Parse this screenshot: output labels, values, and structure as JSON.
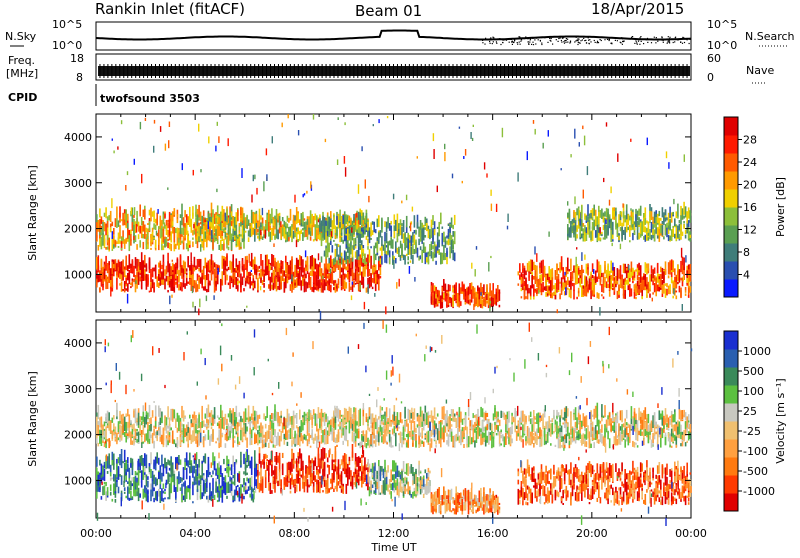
{
  "header": {
    "station": "Rankin Inlet (fitACF)",
    "beam": "Beam 01",
    "date": "18/Apr/2015"
  },
  "panels": {
    "nsky": {
      "left_label": "N.Sky",
      "right_label": "N.Search",
      "left_ticks": [
        "10^5",
        "10^0"
      ],
      "right_ticks": [
        "10^5",
        "10^0"
      ]
    },
    "freq": {
      "left_label_1": "Freq.",
      "left_label_2": "[MHz]",
      "right_label": "Nave",
      "left_ticks": [
        "18",
        "8"
      ],
      "right_ticks": [
        "60",
        "0"
      ]
    },
    "cpid": {
      "label": "CPID",
      "program": "twofsound 3503"
    }
  },
  "chart_data": [
    {
      "type": "heatmap",
      "name": "power",
      "xlabel": "",
      "ylabel": "Slant Range [km]",
      "xlim_hours": [
        0,
        24
      ],
      "ylim": [
        180,
        4500
      ],
      "y_ticks": [
        1000,
        2000,
        3000,
        4000
      ],
      "colorbar": {
        "label": "Power [dB]",
        "ticks": [
          "28",
          "24",
          "20",
          "16",
          "12",
          "8",
          "4"
        ],
        "colors": [
          "#0a1aff",
          "#2a4fb0",
          "#3f7d7a",
          "#5a9f52",
          "#8cbf3a",
          "#f0d000",
          "#ff9a00",
          "#ff5a00",
          "#ff1a00",
          "#e00000"
        ]
      },
      "regions": [
        {
          "t0": 0.0,
          "t1": 11.5,
          "r0": 600,
          "r1": 1200,
          "level": 0.85
        },
        {
          "t0": 0.0,
          "t1": 6.0,
          "r0": 1500,
          "r1": 2300,
          "level": 0.6
        },
        {
          "t0": 4.0,
          "t1": 11.0,
          "r0": 1700,
          "r1": 2200,
          "level": 0.5
        },
        {
          "t0": 9.0,
          "t1": 14.5,
          "r0": 1200,
          "r1": 2100,
          "level": 0.35
        },
        {
          "t0": 13.5,
          "t1": 16.3,
          "r0": 250,
          "r1": 650,
          "level": 0.8
        },
        {
          "t0": 17.0,
          "t1": 24.0,
          "r0": 450,
          "r1": 1100,
          "level": 0.75
        },
        {
          "t0": 19.0,
          "t1": 24.0,
          "r0": 1700,
          "r1": 2300,
          "level": 0.4
        }
      ]
    },
    {
      "type": "heatmap",
      "name": "velocity",
      "xlabel": "Time UT",
      "ylabel": "Slant Range [km]",
      "xlim_hours": [
        0,
        24
      ],
      "ylim": [
        180,
        4500
      ],
      "y_ticks": [
        1000,
        2000,
        3000,
        4000
      ],
      "x_ticks": [
        "00:00",
        "04:00",
        "08:00",
        "12:00",
        "16:00",
        "20:00",
        "00:00"
      ],
      "colorbar": {
        "label": "Velocity [m s⁻¹]",
        "ticks": [
          "1000",
          "500",
          "100",
          "25",
          "-25",
          "-100",
          "-500",
          "-1000"
        ],
        "colors": [
          "#e00000",
          "#ff3a00",
          "#ff7a10",
          "#ffa040",
          "#f0c070",
          "#c8c8c0",
          "#5cc040",
          "#3a8a5a",
          "#2a5fb0",
          "#1a2fd0"
        ]
      },
      "regions": [
        {
          "t0": 0.0,
          "t1": 24.0,
          "r0": 1700,
          "r1": 2400,
          "level": 0.5
        },
        {
          "t0": 0.0,
          "t1": 6.5,
          "r0": 500,
          "r1": 1400,
          "level": 0.8
        },
        {
          "t0": 6.5,
          "t1": 11.0,
          "r0": 700,
          "r1": 1500,
          "level": 0.15
        },
        {
          "t0": 11.0,
          "t1": 13.5,
          "r0": 600,
          "r1": 1200,
          "level": 0.6
        },
        {
          "t0": 13.5,
          "t1": 16.3,
          "r0": 250,
          "r1": 600,
          "level": 0.35
        },
        {
          "t0": 17.0,
          "t1": 24.0,
          "r0": 450,
          "r1": 1200,
          "level": 0.2
        }
      ]
    }
  ],
  "time_axis": {
    "label": "Time UT",
    "ticks": [
      "00:00",
      "04:00",
      "08:00",
      "12:00",
      "16:00",
      "20:00",
      "00:00"
    ]
  }
}
